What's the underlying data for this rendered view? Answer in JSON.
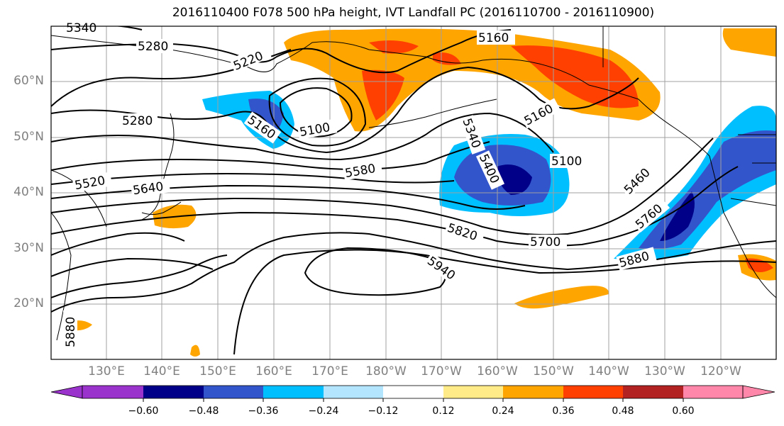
{
  "title": "2016110400 F078 500 hPa height, IVT Landfall PC (2016110700 - 2016110900)",
  "map": {
    "lat_labels": [
      "60°N",
      "50°N",
      "40°N",
      "30°N",
      "20°N"
    ],
    "lon_labels": [
      "130°E",
      "140°E",
      "150°E",
      "160°E",
      "170°E",
      "180°W",
      "170°W",
      "160°W",
      "150°W",
      "140°W",
      "130°W",
      "120°W"
    ],
    "contour_labels": [
      "5340",
      "5280",
      "5220",
      "5160",
      "5280",
      "5160",
      "5100",
      "5160",
      "5340",
      "5400",
      "5100",
      "5580",
      "5520",
      "5640",
      "5460",
      "5760",
      "5820",
      "5700",
      "5880",
      "5940",
      "5880"
    ]
  },
  "colorbar": {
    "colors": [
      "#9933cc",
      "#000088",
      "#3355cc",
      "#00bfff",
      "#b3e5ff",
      "#ffffff",
      "#ffeb88",
      "#ffa500",
      "#ff4000",
      "#b22222",
      "#ff88aa"
    ],
    "ticks": [
      "−0.60",
      "−0.48",
      "−0.36",
      "−0.24",
      "−0.12",
      "0.12",
      "0.24",
      "0.36",
      "0.48",
      "0.60"
    ]
  }
}
